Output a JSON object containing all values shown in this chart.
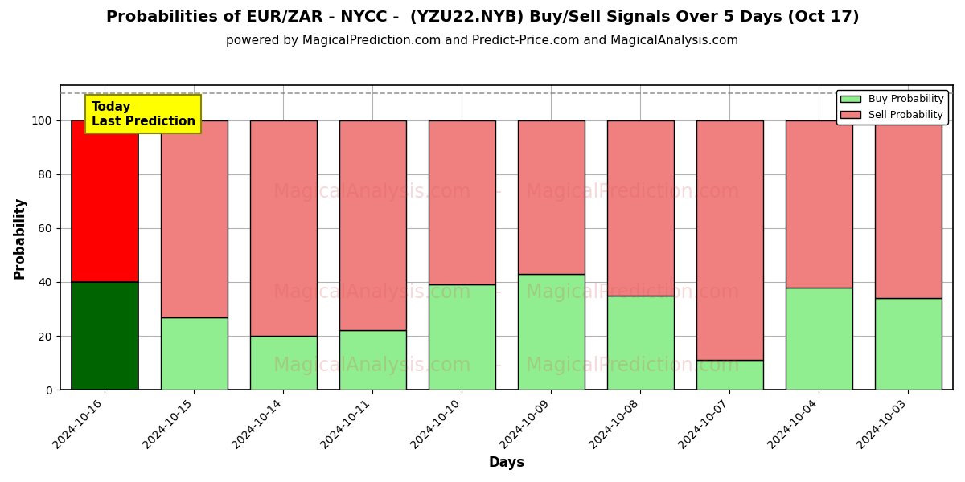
{
  "title": "Probabilities of EUR/ZAR - NYCC -  (YZU22.NYB) Buy/Sell Signals Over 5 Days (Oct 17)",
  "subtitle": "powered by MagicalPrediction.com and Predict-Price.com and MagicalAnalysis.com",
  "xlabel": "Days",
  "ylabel": "Probability",
  "categories": [
    "2024-10-16",
    "2024-10-15",
    "2024-10-14",
    "2024-10-11",
    "2024-10-10",
    "2024-10-09",
    "2024-10-08",
    "2024-10-07",
    "2024-10-04",
    "2024-10-03"
  ],
  "buy_values": [
    40,
    27,
    20,
    22,
    39,
    43,
    35,
    11,
    38,
    34
  ],
  "sell_values": [
    60,
    73,
    80,
    78,
    61,
    57,
    65,
    89,
    62,
    66
  ],
  "today_buy_color": "#006400",
  "today_sell_color": "#FF0000",
  "buy_color": "#90EE90",
  "sell_color": "#F08080",
  "bar_edge_color": "#000000",
  "ylim": [
    0,
    113
  ],
  "yticks": [
    0,
    20,
    40,
    60,
    80,
    100
  ],
  "dashed_line_y": 110,
  "watermark_line1": "MagicalAnalysis.com  -  MagicalPrediction.com",
  "watermark_line2": "MagicalAnalysis.com  -  MagicalPrediction.com",
  "annotation_text": "Today\nLast Prediction",
  "annotation_bg_color": "#FFFF00",
  "legend_buy_label": "Buy Probability",
  "legend_sell_label": "Sell Probability",
  "title_fontsize": 14,
  "subtitle_fontsize": 11,
  "axis_label_fontsize": 12,
  "tick_fontsize": 10,
  "figsize": [
    12,
    6
  ],
  "dpi": 100,
  "bg_color": "#ffffff"
}
